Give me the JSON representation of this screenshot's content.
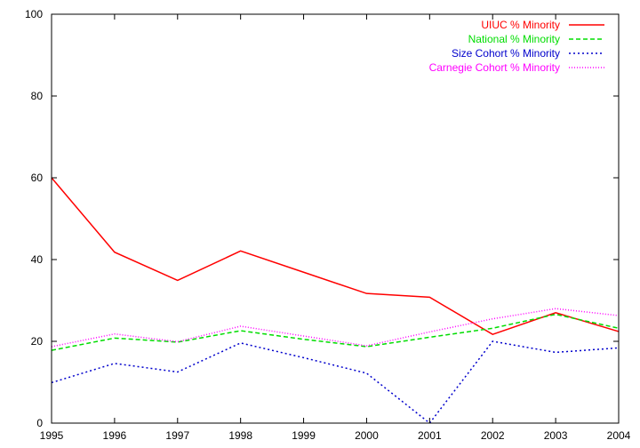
{
  "chart_data": {
    "type": "line",
    "title": "",
    "xlabel": "",
    "ylabel": "",
    "xlim": [
      1995,
      2004
    ],
    "ylim": [
      0,
      100
    ],
    "x_ticks": [
      "1995",
      "1996",
      "1997",
      "1998",
      "1999",
      "2000",
      "2001",
      "2002",
      "2003",
      "2004"
    ],
    "y_ticks": [
      "0",
      "20",
      "40",
      "60",
      "80",
      "100"
    ],
    "grid": false,
    "legend_position": "top-right",
    "series": [
      {
        "name": "UIUC % Minority",
        "color": "#ff0000",
        "style": "solid",
        "x": [
          1995,
          1996,
          1997,
          1998,
          1999,
          2000,
          2001,
          2002,
          2003,
          2004
        ],
        "y": [
          60,
          41.8,
          34.9,
          42.1,
          36.9,
          31.7,
          30.8,
          21.7,
          27.0,
          22.4
        ]
      },
      {
        "name": "National % Minority",
        "color": "#00dd00",
        "style": "dashed",
        "x": [
          1995,
          1996,
          1997,
          1998,
          1999,
          2000,
          2001,
          2002,
          2003,
          2004
        ],
        "y": [
          17.8,
          20.8,
          19.8,
          22.6,
          20.5,
          18.7,
          21.0,
          23.2,
          26.6,
          23.2
        ]
      },
      {
        "name": "Size Cohort % Minority",
        "color": "#0000cc",
        "style": "dotted",
        "x": [
          1995,
          1996,
          1997,
          1998,
          1999,
          2000,
          2001,
          2002,
          2003,
          2004
        ],
        "y": [
          9.9,
          14.6,
          12.5,
          19.6,
          16.0,
          12.2,
          0,
          20.0,
          17.3,
          18.4
        ]
      },
      {
        "name": "Carnegie Cohort % Minority",
        "color": "#ff00ff",
        "style": "fine-dotted",
        "x": [
          1995,
          1996,
          1997,
          1998,
          1999,
          2000,
          2001,
          2002,
          2003,
          2004
        ],
        "y": [
          18.7,
          21.8,
          19.9,
          23.7,
          21.3,
          18.9,
          22.3,
          25.5,
          28.0,
          26.3
        ]
      }
    ]
  }
}
